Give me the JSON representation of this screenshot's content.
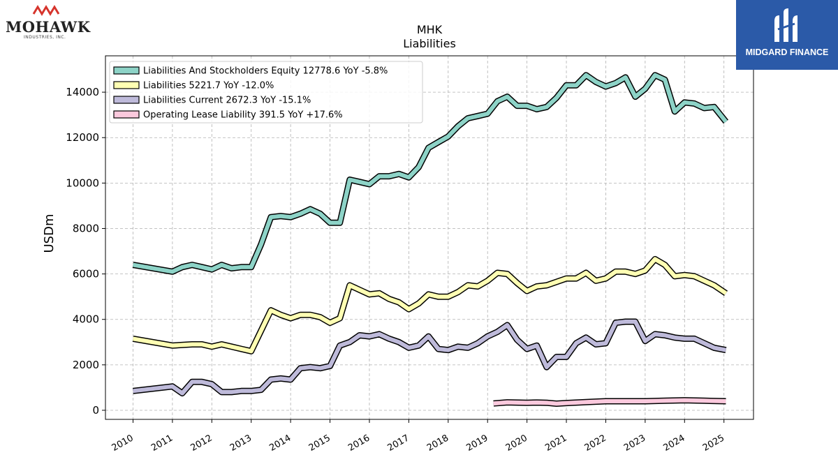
{
  "logos": {
    "left": {
      "brand": "MOHAWK",
      "sub": "INDUSTRIES, INC."
    },
    "right": {
      "brand": "MIDGARD FINANCE"
    }
  },
  "colors": {
    "equity": "#8dd3c7",
    "liabilities": "#ffffb3",
    "current": "#bebada",
    "lease": "#fbc9dd",
    "outline": "#000000",
    "grid": "#b0b0b0"
  },
  "chart_data": {
    "type": "line",
    "title": "MHK",
    "subtitle": "Liabilities",
    "ylabel": "USDm",
    "xlabel": "",
    "xlim": [
      2009.3,
      2025.75
    ],
    "ylim": [
      -400,
      15600
    ],
    "x_ticks": [
      "2010",
      "2011",
      "2012",
      "2013",
      "2014",
      "2015",
      "2016",
      "2017",
      "2018",
      "2019",
      "2020",
      "2021",
      "2022",
      "2023",
      "2024",
      "2025"
    ],
    "y_ticks": [
      0,
      2000,
      4000,
      6000,
      8000,
      10000,
      12000,
      14000
    ],
    "grid": true,
    "legend_position": "top-left",
    "series": [
      {
        "name": "Liabilities And Stockholders Equity",
        "legend": "Liabilities And Stockholders Equity  12778.6 YoY -5.8%",
        "color_key": "equity",
        "points": [
          [
            2010.0,
            6400
          ],
          [
            2011.0,
            6100
          ],
          [
            2011.25,
            6300
          ],
          [
            2011.5,
            6400
          ],
          [
            2011.75,
            6300
          ],
          [
            2012.0,
            6200
          ],
          [
            2012.25,
            6400
          ],
          [
            2012.5,
            6250
          ],
          [
            2012.75,
            6300
          ],
          [
            2013.0,
            6300
          ],
          [
            2013.25,
            7300
          ],
          [
            2013.5,
            8500
          ],
          [
            2013.75,
            8550
          ],
          [
            2014.0,
            8500
          ],
          [
            2014.25,
            8650
          ],
          [
            2014.5,
            8850
          ],
          [
            2014.75,
            8650
          ],
          [
            2015.0,
            8250
          ],
          [
            2015.25,
            8250
          ],
          [
            2015.5,
            10150
          ],
          [
            2015.75,
            10050
          ],
          [
            2016.0,
            9950
          ],
          [
            2016.25,
            10300
          ],
          [
            2016.5,
            10300
          ],
          [
            2016.75,
            10400
          ],
          [
            2017.0,
            10250
          ],
          [
            2017.25,
            10700
          ],
          [
            2017.5,
            11550
          ],
          [
            2017.75,
            11800
          ],
          [
            2018.0,
            12050
          ],
          [
            2018.25,
            12500
          ],
          [
            2018.5,
            12850
          ],
          [
            2018.75,
            12950
          ],
          [
            2019.0,
            13050
          ],
          [
            2019.25,
            13600
          ],
          [
            2019.5,
            13800
          ],
          [
            2019.75,
            13400
          ],
          [
            2020.0,
            13400
          ],
          [
            2020.25,
            13250
          ],
          [
            2020.5,
            13350
          ],
          [
            2020.75,
            13750
          ],
          [
            2021.0,
            14300
          ],
          [
            2021.25,
            14300
          ],
          [
            2021.5,
            14750
          ],
          [
            2021.75,
            14450
          ],
          [
            2022.0,
            14250
          ],
          [
            2022.25,
            14400
          ],
          [
            2022.5,
            14650
          ],
          [
            2022.75,
            13800
          ],
          [
            2023.0,
            14150
          ],
          [
            2023.25,
            14750
          ],
          [
            2023.5,
            14550
          ],
          [
            2023.75,
            13150
          ],
          [
            2024.0,
            13550
          ],
          [
            2024.25,
            13500
          ],
          [
            2024.5,
            13300
          ],
          [
            2024.75,
            13350
          ],
          [
            2025.05,
            12700
          ]
        ]
      },
      {
        "name": "Liabilities",
        "legend": "Liabilities  5221.7 YoY -12.0%",
        "color_key": "liabilities",
        "points": [
          [
            2010.0,
            3150
          ],
          [
            2011.0,
            2850
          ],
          [
            2011.5,
            2900
          ],
          [
            2011.75,
            2900
          ],
          [
            2012.0,
            2800
          ],
          [
            2012.25,
            2900
          ],
          [
            2012.5,
            2800
          ],
          [
            2012.75,
            2700
          ],
          [
            2013.0,
            2600
          ],
          [
            2013.25,
            3500
          ],
          [
            2013.5,
            4400
          ],
          [
            2013.75,
            4200
          ],
          [
            2014.0,
            4050
          ],
          [
            2014.25,
            4200
          ],
          [
            2014.5,
            4200
          ],
          [
            2014.75,
            4100
          ],
          [
            2015.0,
            3850
          ],
          [
            2015.25,
            4050
          ],
          [
            2015.5,
            5500
          ],
          [
            2015.75,
            5300
          ],
          [
            2016.0,
            5100
          ],
          [
            2016.25,
            5150
          ],
          [
            2016.5,
            4900
          ],
          [
            2016.75,
            4750
          ],
          [
            2017.0,
            4450
          ],
          [
            2017.25,
            4700
          ],
          [
            2017.5,
            5100
          ],
          [
            2017.75,
            5000
          ],
          [
            2018.0,
            5000
          ],
          [
            2018.25,
            5200
          ],
          [
            2018.5,
            5500
          ],
          [
            2018.75,
            5450
          ],
          [
            2019.0,
            5700
          ],
          [
            2019.25,
            6050
          ],
          [
            2019.5,
            6000
          ],
          [
            2019.75,
            5600
          ],
          [
            2020.0,
            5250
          ],
          [
            2020.25,
            5450
          ],
          [
            2020.5,
            5500
          ],
          [
            2020.75,
            5650
          ],
          [
            2021.0,
            5800
          ],
          [
            2021.25,
            5800
          ],
          [
            2021.5,
            6050
          ],
          [
            2021.75,
            5700
          ],
          [
            2022.0,
            5800
          ],
          [
            2022.25,
            6100
          ],
          [
            2022.5,
            6100
          ],
          [
            2022.75,
            6000
          ],
          [
            2023.0,
            6150
          ],
          [
            2023.25,
            6650
          ],
          [
            2023.5,
            6400
          ],
          [
            2023.75,
            5900
          ],
          [
            2024.0,
            5950
          ],
          [
            2024.25,
            5900
          ],
          [
            2024.5,
            5700
          ],
          [
            2024.75,
            5500
          ],
          [
            2025.05,
            5150
          ]
        ]
      },
      {
        "name": "Liabilities Current",
        "legend": "Liabilities Current  2672.3 YoY -15.1%",
        "color_key": "current",
        "points": [
          [
            2010.0,
            850
          ],
          [
            2011.0,
            1050
          ],
          [
            2011.25,
            750
          ],
          [
            2011.5,
            1250
          ],
          [
            2011.75,
            1250
          ],
          [
            2012.0,
            1150
          ],
          [
            2012.25,
            800
          ],
          [
            2012.5,
            800
          ],
          [
            2012.75,
            850
          ],
          [
            2013.0,
            850
          ],
          [
            2013.25,
            900
          ],
          [
            2013.5,
            1350
          ],
          [
            2013.75,
            1400
          ],
          [
            2014.0,
            1350
          ],
          [
            2014.25,
            1850
          ],
          [
            2014.5,
            1900
          ],
          [
            2014.75,
            1850
          ],
          [
            2015.0,
            1950
          ],
          [
            2015.25,
            2850
          ],
          [
            2015.5,
            3000
          ],
          [
            2015.75,
            3300
          ],
          [
            2016.0,
            3250
          ],
          [
            2016.25,
            3350
          ],
          [
            2016.5,
            3150
          ],
          [
            2016.75,
            3000
          ],
          [
            2017.0,
            2750
          ],
          [
            2017.25,
            2850
          ],
          [
            2017.5,
            3250
          ],
          [
            2017.75,
            2700
          ],
          [
            2018.0,
            2650
          ],
          [
            2018.25,
            2800
          ],
          [
            2018.5,
            2750
          ],
          [
            2018.75,
            2950
          ],
          [
            2019.0,
            3250
          ],
          [
            2019.25,
            3450
          ],
          [
            2019.5,
            3750
          ],
          [
            2019.75,
            3100
          ],
          [
            2020.0,
            2700
          ],
          [
            2020.25,
            2850
          ],
          [
            2020.5,
            1900
          ],
          [
            2020.75,
            2350
          ],
          [
            2021.0,
            2350
          ],
          [
            2021.25,
            2950
          ],
          [
            2021.5,
            3200
          ],
          [
            2021.75,
            2900
          ],
          [
            2022.0,
            2950
          ],
          [
            2022.25,
            3850
          ],
          [
            2022.5,
            3900
          ],
          [
            2022.75,
            3900
          ],
          [
            2023.0,
            3050
          ],
          [
            2023.25,
            3350
          ],
          [
            2023.5,
            3300
          ],
          [
            2023.75,
            3200
          ],
          [
            2024.0,
            3150
          ],
          [
            2024.25,
            3150
          ],
          [
            2024.5,
            2950
          ],
          [
            2024.75,
            2750
          ],
          [
            2025.05,
            2650
          ]
        ]
      },
      {
        "name": "Operating Lease Liability",
        "legend": "Operating Lease Liability  391.5 YoY +17.6%",
        "color_key": "lease",
        "points": [
          [
            2019.15,
            300
          ],
          [
            2019.5,
            350
          ],
          [
            2020.0,
            330
          ],
          [
            2020.25,
            340
          ],
          [
            2020.5,
            330
          ],
          [
            2020.75,
            290
          ],
          [
            2021.0,
            320
          ],
          [
            2021.5,
            360
          ],
          [
            2022.0,
            400
          ],
          [
            2022.5,
            400
          ],
          [
            2023.0,
            400
          ],
          [
            2023.5,
            420
          ],
          [
            2024.0,
            440
          ],
          [
            2024.5,
            420
          ],
          [
            2025.05,
            400
          ]
        ]
      }
    ]
  }
}
